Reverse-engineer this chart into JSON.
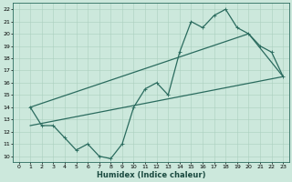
{
  "xlabel": "Humidex (Indice chaleur)",
  "ylabel": "",
  "bg_color": "#cce8dc",
  "line_color": "#2a6b5e",
  "grid_color": "#aacfbf",
  "xlim": [
    -0.5,
    23.5
  ],
  "ylim": [
    9.5,
    22.5
  ],
  "xticks": [
    0,
    1,
    2,
    3,
    4,
    5,
    6,
    7,
    8,
    9,
    10,
    11,
    12,
    13,
    14,
    15,
    16,
    17,
    18,
    19,
    20,
    21,
    22,
    23
  ],
  "yticks": [
    10,
    11,
    12,
    13,
    14,
    15,
    16,
    17,
    18,
    19,
    20,
    21,
    22
  ],
  "line1_x": [
    1,
    2,
    3,
    4,
    5,
    6,
    7,
    8,
    9,
    10,
    11,
    12,
    13,
    14,
    15,
    16,
    17,
    18,
    19,
    20,
    21,
    22,
    23
  ],
  "line1_y": [
    14.0,
    12.5,
    12.5,
    11.5,
    10.5,
    11.0,
    10.0,
    9.8,
    11.0,
    14.0,
    15.5,
    16.0,
    15.0,
    18.5,
    21.0,
    20.5,
    21.5,
    22.0,
    20.5,
    20.0,
    19.0,
    18.5,
    16.5
  ],
  "line2_x": [
    1,
    20
  ],
  "line2_y": [
    14.0,
    20.0
  ],
  "line3_x": [
    1,
    23
  ],
  "line3_y": [
    12.5,
    16.5
  ],
  "linewidth": 0.9,
  "marker_size": 2.5,
  "tick_fontsize": 4.5,
  "xlabel_fontsize": 6.0
}
